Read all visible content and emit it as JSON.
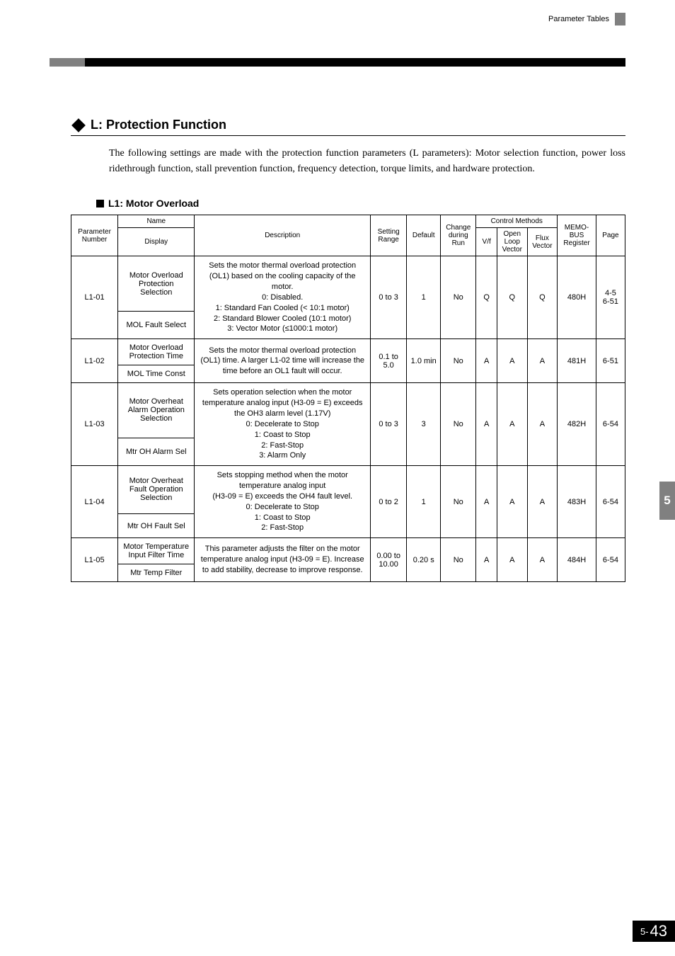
{
  "header_label": "Parameter Tables",
  "section": {
    "title": "L: Protection Function",
    "body": "The following settings are made with the protection function parameters (L parameters): Motor selection function, power loss ridethrough function, stall prevention function, frequency detection, torque limits, and hardware protection."
  },
  "subsection_title": "L1: Motor Overload",
  "side_tab": "5",
  "page_prefix": "5-",
  "page_num": "43",
  "table": {
    "head": {
      "param_num": "Parameter Number",
      "name": "Name",
      "display": "Display",
      "description": "Description",
      "setting_range": "Setting Range",
      "default": "Default",
      "change_run": "Change during Run",
      "control_methods": "Control Methods",
      "vf": "V/f",
      "olv": "Open Loop Vector",
      "flux": "Flux Vector",
      "memobus": "MEMO-BUS Register",
      "page": "Page"
    },
    "rows": [
      {
        "num": "L1-01",
        "name": "Motor Overload Protection Selection",
        "display": "MOL Fault Select",
        "desc": "Sets the motor thermal overload protection (OL1) based on the cooling capacity of the motor.\n0:  Disabled.\n1:  Standard Fan Cooled (< 10:1 motor)\n2:  Standard Blower Cooled (10:1 motor)\n3:  Vector Motor (≤1000:1 motor)",
        "range": "0 to 3",
        "default": "1",
        "change": "No",
        "vf": "Q",
        "olv": "Q",
        "flux": "Q",
        "memobus": "480H",
        "page": "4-5\n6-51"
      },
      {
        "num": "L1-02",
        "name": "Motor Overload Protection Time",
        "display": "MOL Time Const",
        "desc": "Sets the motor thermal overload protection (OL1) time. A larger L1-02 time will increase the time before an OL1 fault will occur.",
        "range": "0.1 to 5.0",
        "default": "1.0 min",
        "change": "No",
        "vf": "A",
        "olv": "A",
        "flux": "A",
        "memobus": "481H",
        "page": "6-51"
      },
      {
        "num": "L1-03",
        "name": "Motor Overheat Alarm Operation Selection",
        "display": "Mtr OH Alarm Sel",
        "desc": "Sets operation selection when the motor temperature analog input (H3-09 = E) exceeds the OH3 alarm level (1.17V)\n0:  Decelerate to Stop\n1:  Coast to Stop\n2:  Fast-Stop\n3:  Alarm Only",
        "range": "0 to 3",
        "default": "3",
        "change": "No",
        "vf": "A",
        "olv": "A",
        "flux": "A",
        "memobus": "482H",
        "page": "6-54"
      },
      {
        "num": "L1-04",
        "name": "Motor Overheat Fault Operation Selection",
        "display": "Mtr OH Fault Sel",
        "desc": "Sets stopping method when the motor temperature analog input\n(H3-09 = E) exceeds the OH4 fault level.\n0:  Decelerate to Stop\n1:  Coast to Stop\n2:  Fast-Stop",
        "range": "0 to 2",
        "default": "1",
        "change": "No",
        "vf": "A",
        "olv": "A",
        "flux": "A",
        "memobus": "483H",
        "page": "6-54"
      },
      {
        "num": "L1-05",
        "name": "Motor Temperature Input Filter Time",
        "display": "Mtr Temp Filter",
        "desc": "This parameter adjusts the filter on the motor temperature analog input (H3-09 = E). Increase to add stability, decrease to improve response.",
        "range": "0.00 to 10.00",
        "default": "0.20 s",
        "change": "No",
        "vf": "A",
        "olv": "A",
        "flux": "A",
        "memobus": "484H",
        "page": "6-54"
      }
    ]
  }
}
